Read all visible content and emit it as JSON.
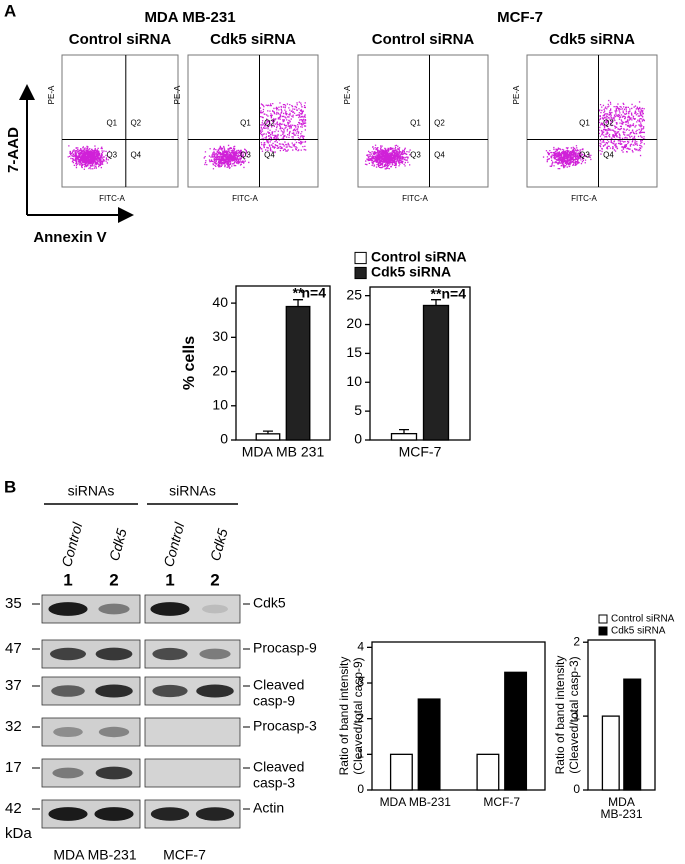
{
  "panels": [
    "A",
    "B"
  ],
  "flow": {
    "groups": [
      {
        "title": "MDA MB-231"
      },
      {
        "title": "MCF-7"
      }
    ],
    "conditions": [
      "Control siRNA",
      "Cdk5 siRNA",
      "Control siRNA",
      "Cdk5 siRNA"
    ],
    "axis_x": "FITC-A",
    "axis_y": "PE-A",
    "quadrants": [
      "Q1",
      "Q2",
      "Q3",
      "Q4"
    ],
    "y_label": "7-AAD",
    "x_label": "Annexin V"
  },
  "blot": {
    "headers": [
      "siRNAs",
      "siRNAs"
    ],
    "lanes": [
      "Control",
      "Cdk5",
      "Control",
      "Cdk5"
    ],
    "lane_numbers": [
      "1",
      "2",
      "1",
      "2"
    ],
    "markers": [
      "35",
      "47",
      "37",
      "32",
      "17",
      "42"
    ],
    "marker_unit": "kDa",
    "rows": [
      [
        "Cdk5"
      ],
      [
        "Procasp-9"
      ],
      [
        "Cleaved",
        "casp-9"
      ],
      [
        "Procasp-3"
      ],
      [
        "Cleaved",
        "casp-3"
      ],
      [
        "Actin"
      ]
    ],
    "cell_lines": [
      "MDA MB-231",
      "MCF-7"
    ]
  },
  "chart_data": [
    {
      "type": "bar",
      "ylabel": "% cells",
      "categories": [
        "MDA MB 231"
      ],
      "series": [
        {
          "color": "#ffffff",
          "values": [
            1.8
          ],
          "errors": [
            0.8
          ]
        },
        {
          "color": "#222222",
          "values": [
            39
          ],
          "errors": [
            2
          ]
        }
      ],
      "ylim": [
        0,
        45
      ],
      "yticks": [
        0,
        10,
        20,
        30,
        40
      ],
      "annotations": [
        "**",
        "n=4"
      ]
    },
    {
      "type": "bar",
      "categories": [
        "MCF-7"
      ],
      "series": [
        {
          "name": "Control siRNA",
          "color": "#ffffff",
          "values": [
            1.1
          ],
          "errors": [
            0.7
          ]
        },
        {
          "name": "Cdk5 siRNA",
          "color": "#222222",
          "values": [
            23.3
          ],
          "errors": [
            1
          ]
        }
      ],
      "ylim": [
        0,
        26.5
      ],
      "yticks": [
        0,
        5,
        10,
        15,
        20,
        25
      ],
      "annotations": [
        "**",
        "n=4"
      ],
      "legend": "top-left"
    },
    {
      "type": "bar",
      "ylabel": [
        "Ratio of band intensity",
        "(Cleaved/total casp-9)"
      ],
      "categories": [
        "MDA MB-231",
        "MCF-7"
      ],
      "series": [
        {
          "color": "#ffffff",
          "values": [
            1,
            1
          ]
        },
        {
          "color": "#000000",
          "values": [
            2.55,
            3.3
          ]
        }
      ],
      "ylim": [
        0,
        4.15
      ],
      "yticks": [
        0,
        1,
        2,
        3,
        4
      ]
    },
    {
      "type": "bar",
      "ylabel": [
        "Ratio of band intensity",
        "(Cleaved/total casp-3)"
      ],
      "categories": [
        [
          "MDA",
          "MB-231"
        ]
      ],
      "series": [
        {
          "name": "Control siRNA",
          "color": "#ffffff",
          "values": [
            1
          ]
        },
        {
          "name": "Cdk5 siRNA",
          "color": "#000000",
          "values": [
            1.5
          ]
        }
      ],
      "ylim": [
        0,
        2.03
      ],
      "yticks": [
        0,
        1,
        2
      ],
      "legend": "top-left"
    }
  ]
}
